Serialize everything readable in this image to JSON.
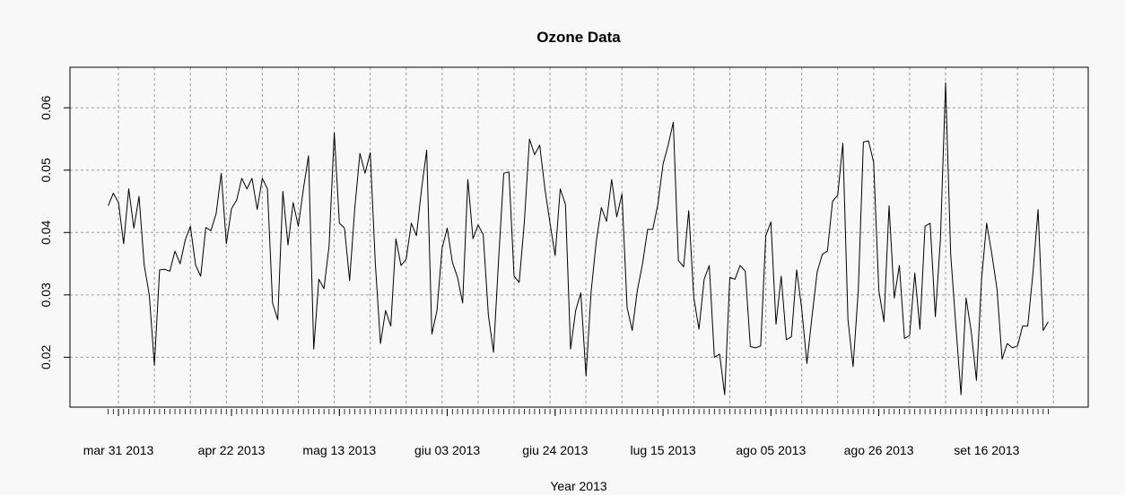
{
  "chart_data": {
    "type": "line",
    "title": "Ozone Data",
    "xlabel": "Year 2013",
    "ylabel": "",
    "start_date": "2013-03-29",
    "x_ticks": [
      {
        "label": "mar 31 2013",
        "date": "2013-03-31"
      },
      {
        "label": "apr 22 2013",
        "date": "2013-04-22"
      },
      {
        "label": "mag 13 2013",
        "date": "2013-05-13"
      },
      {
        "label": "giu 03 2013",
        "date": "2013-06-03"
      },
      {
        "label": "giu 24 2013",
        "date": "2013-06-24"
      },
      {
        "label": "lug 15 2013",
        "date": "2013-07-15"
      },
      {
        "label": "ago 05 2013",
        "date": "2013-08-05"
      },
      {
        "label": "ago 26 2013",
        "date": "2013-08-26"
      },
      {
        "label": "set 16 2013",
        "date": "2013-09-16"
      }
    ],
    "y_ticks": [
      "0.02",
      "0.03",
      "0.04",
      "0.05",
      "0.06"
    ],
    "ylim": [
      0.012,
      0.0665
    ],
    "grid": true,
    "series": [
      {
        "values": [
          0.0443,
          0.0463,
          0.0448,
          0.0382,
          0.047,
          0.0407,
          0.0458,
          0.0348,
          0.03,
          0.0187,
          0.034,
          0.0341,
          0.0338,
          0.037,
          0.035,
          0.0388,
          0.041,
          0.0348,
          0.033,
          0.0408,
          0.0403,
          0.043,
          0.0495,
          0.0382,
          0.0438,
          0.0452,
          0.0487,
          0.047,
          0.0487,
          0.0437,
          0.0487,
          0.047,
          0.0287,
          0.026,
          0.0466,
          0.038,
          0.0448,
          0.041,
          0.047,
          0.0523,
          0.0213,
          0.0325,
          0.031,
          0.0378,
          0.056,
          0.0415,
          0.0407,
          0.0323,
          0.044,
          0.0527,
          0.0495,
          0.0528,
          0.035,
          0.0222,
          0.0275,
          0.025,
          0.039,
          0.0347,
          0.0357,
          0.0415,
          0.0395,
          0.047,
          0.0532,
          0.0237,
          0.0275,
          0.0375,
          0.0407,
          0.0352,
          0.0328,
          0.0287,
          0.0485,
          0.039,
          0.0412,
          0.0397,
          0.0267,
          0.0208,
          0.0357,
          0.0495,
          0.0497,
          0.033,
          0.032,
          0.0415,
          0.055,
          0.0525,
          0.054,
          0.047,
          0.0415,
          0.0363,
          0.047,
          0.0445,
          0.0213,
          0.0275,
          0.0303,
          0.017,
          0.0305,
          0.0385,
          0.044,
          0.0418,
          0.0485,
          0.0425,
          0.0462,
          0.028,
          0.0243,
          0.0307,
          0.035,
          0.0405,
          0.0405,
          0.0445,
          0.051,
          0.054,
          0.0577,
          0.0355,
          0.0345,
          0.0435,
          0.0295,
          0.0245,
          0.0325,
          0.0347,
          0.02,
          0.0205,
          0.014,
          0.0328,
          0.0325,
          0.0347,
          0.0338,
          0.0217,
          0.0215,
          0.0218,
          0.0395,
          0.0417,
          0.0253,
          0.033,
          0.0228,
          0.0233,
          0.034,
          0.0277,
          0.019,
          0.0265,
          0.0337,
          0.0365,
          0.037,
          0.045,
          0.046,
          0.0543,
          0.026,
          0.0185,
          0.0307,
          0.0545,
          0.0547,
          0.0513,
          0.0307,
          0.0257,
          0.0443,
          0.0295,
          0.0347,
          0.023,
          0.0235,
          0.0335,
          0.0245,
          0.041,
          0.0415,
          0.0265,
          0.039,
          0.064,
          0.0365,
          0.025,
          0.014,
          0.0295,
          0.024,
          0.0163,
          0.0325,
          0.0415,
          0.0365,
          0.031,
          0.0197,
          0.0222,
          0.0215,
          0.0218,
          0.025,
          0.025,
          0.0335,
          0.0437,
          0.0243,
          0.0257
        ]
      }
    ]
  }
}
